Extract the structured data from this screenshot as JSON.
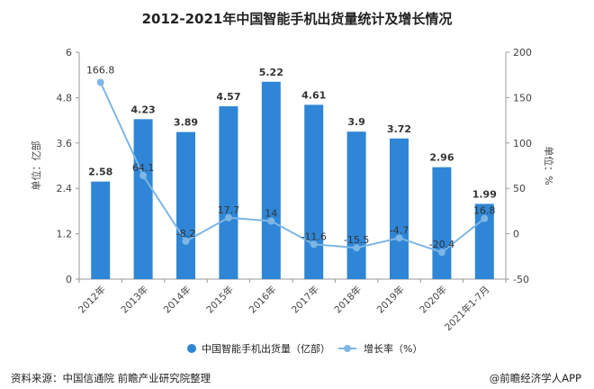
{
  "chart_data": {
    "type": "bar+line",
    "title": "2012-2021年中国智能手机出货量统计及增长情况",
    "categories": [
      "2012年",
      "2013年",
      "2014年",
      "2015年",
      "2016年",
      "2017年",
      "2018年",
      "2019年",
      "2020年",
      "2021年1-7月"
    ],
    "series": [
      {
        "name": "中国智能手机出货量（亿部）",
        "type": "bar",
        "axis": "left",
        "values": [
          2.58,
          4.23,
          3.89,
          4.57,
          5.22,
          4.61,
          3.9,
          3.72,
          2.96,
          1.99
        ]
      },
      {
        "name": "增长率（%）",
        "type": "line",
        "axis": "right",
        "values": [
          166.8,
          64.1,
          -8.2,
          17.7,
          14,
          -11.6,
          -15.5,
          -4.7,
          -20.4,
          16.8
        ]
      }
    ],
    "ylabel": "单位：亿部",
    "y2label": "单位：%",
    "ylim": [
      0,
      6
    ],
    "yticks": [
      0,
      1.2,
      2.4,
      3.6,
      4.8,
      6
    ],
    "ytick_labels": [
      "0",
      "1.2",
      "2.4",
      "3.6",
      "4.8",
      "6"
    ],
    "y2lim": [
      -50,
      200
    ],
    "y2ticks": [
      -50,
      0,
      50,
      100,
      150,
      200
    ],
    "grid": false,
    "legend": "bottom",
    "colors": {
      "bar": "#2f86d6",
      "line": "#7eb6e4",
      "label": "#333333"
    }
  },
  "footer": {
    "source": "资料来源：中国信通院 前瞻产业研究院整理",
    "brand": "@前瞻经济学人APP"
  }
}
